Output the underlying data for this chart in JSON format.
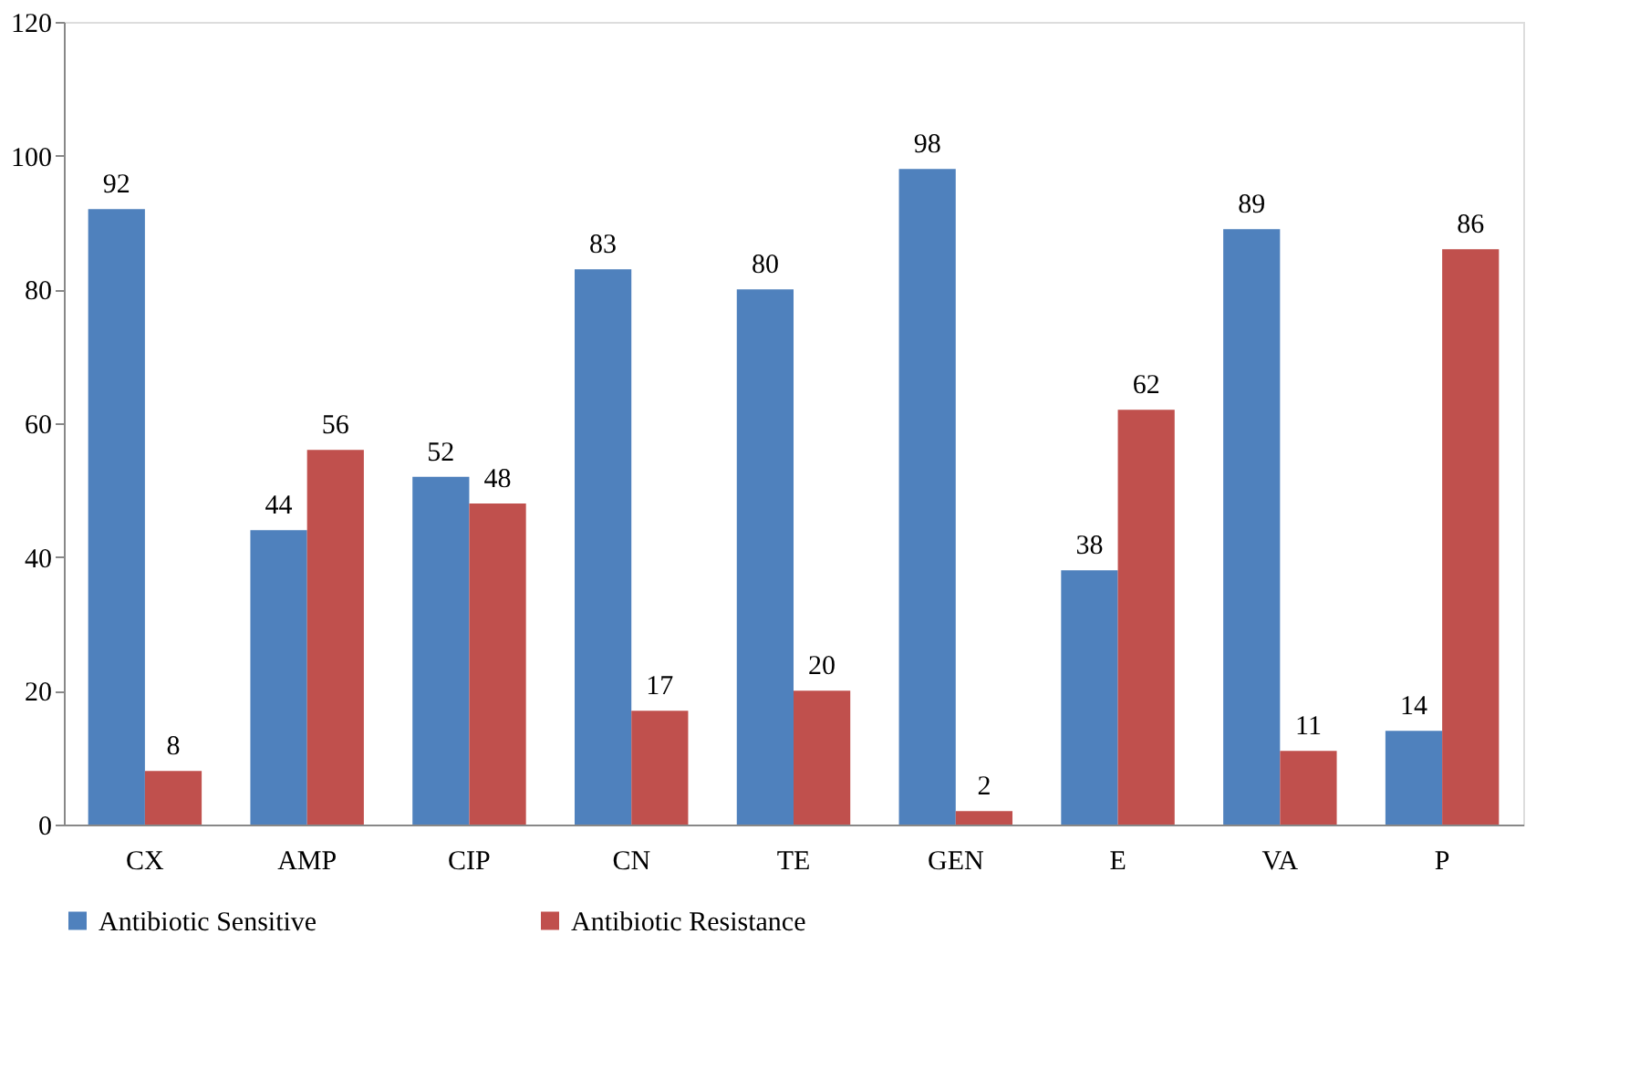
{
  "chart_data": {
    "type": "bar",
    "categories": [
      "CX",
      "AMP",
      "CIP",
      "CN",
      "TE",
      "GEN",
      "E",
      "VA",
      "P"
    ],
    "series": [
      {
        "name": "Antibiotic Sensitive",
        "color": "#4f81bd",
        "values": [
          92,
          44,
          52,
          83,
          80,
          98,
          38,
          89,
          14
        ]
      },
      {
        "name": "Antibiotic Resistance",
        "color": "#c0504d",
        "values": [
          8,
          56,
          48,
          17,
          20,
          2,
          62,
          11,
          86
        ]
      }
    ],
    "ylim": [
      0,
      120
    ],
    "yticks": [
      0,
      20,
      40,
      60,
      80,
      100,
      120
    ],
    "grid": false,
    "legend": "bottom",
    "data_labels": true
  }
}
